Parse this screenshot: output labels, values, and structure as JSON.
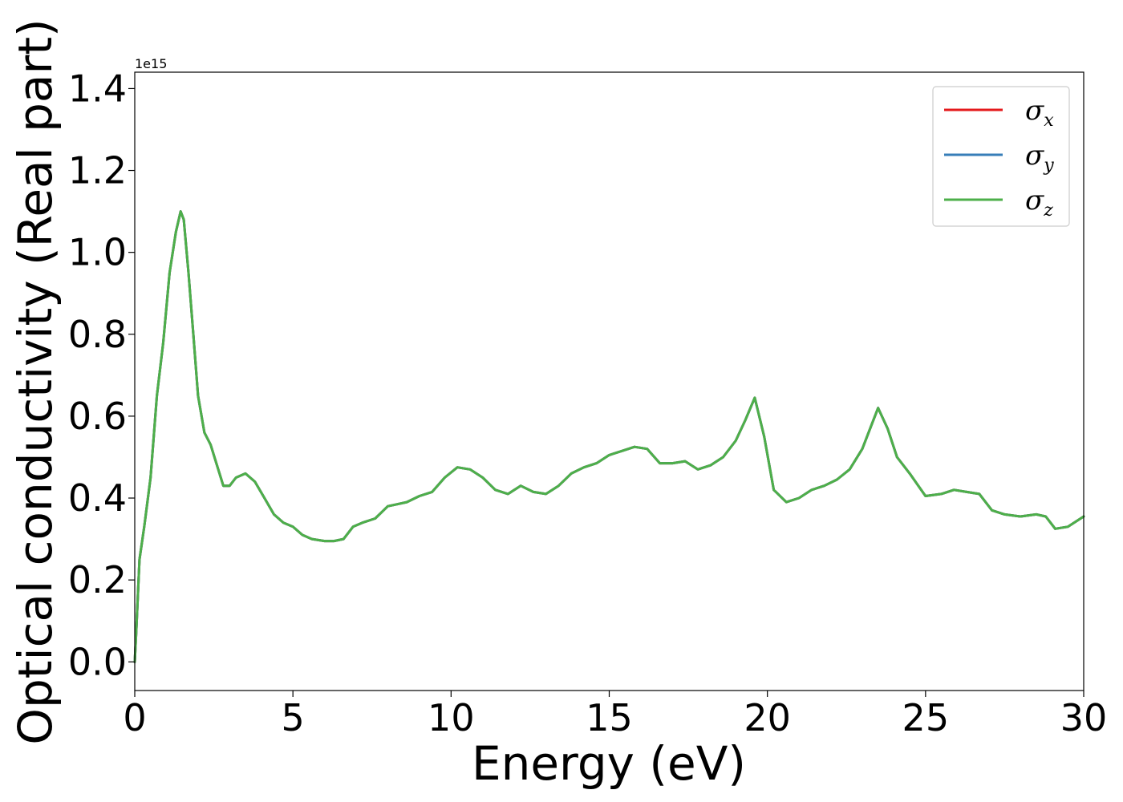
{
  "chart_data": {
    "type": "line",
    "title": "",
    "xlabel": "Energy (eV)",
    "ylabel": "Optical conductivity (Real part)",
    "y_offset_text": "1e15",
    "xlim": [
      0,
      30
    ],
    "ylim": [
      -0.07,
      1.44
    ],
    "x_ticks": [
      0,
      5,
      10,
      15,
      20,
      25,
      30
    ],
    "x_tick_labels": [
      "0",
      "5",
      "10",
      "15",
      "20",
      "25",
      "30"
    ],
    "y_ticks": [
      0.0,
      0.2,
      0.4,
      0.6,
      0.8,
      1.0,
      1.2,
      1.4
    ],
    "y_tick_labels": [
      "0.0",
      "0.2",
      "0.4",
      "0.6",
      "0.8",
      "1.0",
      "1.2",
      "1.4"
    ],
    "grid": false,
    "legend_position": "top-right",
    "series": [
      {
        "name": "σx",
        "symbol": "σ",
        "sub": "x",
        "color": "#e41a1c",
        "x": [
          0,
          0.05,
          0.15,
          0.3,
          0.5,
          0.7,
          0.9,
          1.1,
          1.3,
          1.45,
          1.55,
          1.7,
          1.85,
          2.0,
          2.2,
          2.4,
          2.6,
          2.8,
          3.0,
          3.2,
          3.5,
          3.8,
          4.1,
          4.4,
          4.7,
          5.0,
          5.3,
          5.6,
          6.0,
          6.3,
          6.6,
          6.9,
          7.2,
          7.6,
          8.0,
          8.3,
          8.6,
          9.0,
          9.4,
          9.8,
          10.2,
          10.6,
          11.0,
          11.4,
          11.8,
          12.2,
          12.6,
          13.0,
          13.4,
          13.8,
          14.2,
          14.6,
          15.0,
          15.4,
          15.8,
          16.2,
          16.6,
          17.0,
          17.4,
          17.8,
          18.2,
          18.6,
          19.0,
          19.3,
          19.6,
          19.9,
          20.2,
          20.6,
          21.0,
          21.4,
          21.8,
          22.2,
          22.6,
          23.0,
          23.3,
          23.5,
          23.8,
          24.1,
          24.5,
          25.0,
          25.5,
          25.9,
          26.3,
          26.7,
          27.1,
          27.5,
          28.0,
          28.5,
          28.8,
          29.1,
          29.5,
          30.0
        ],
        "y": [
          0.0,
          0.08,
          0.25,
          0.33,
          0.45,
          0.65,
          0.78,
          0.95,
          1.05,
          1.1,
          1.08,
          0.95,
          0.8,
          0.65,
          0.56,
          0.53,
          0.48,
          0.43,
          0.43,
          0.45,
          0.46,
          0.44,
          0.4,
          0.36,
          0.34,
          0.33,
          0.31,
          0.3,
          0.295,
          0.295,
          0.3,
          0.33,
          0.34,
          0.35,
          0.38,
          0.385,
          0.39,
          0.405,
          0.415,
          0.45,
          0.475,
          0.47,
          0.45,
          0.42,
          0.41,
          0.43,
          0.415,
          0.41,
          0.43,
          0.46,
          0.475,
          0.485,
          0.505,
          0.515,
          0.525,
          0.52,
          0.485,
          0.485,
          0.49,
          0.47,
          0.48,
          0.5,
          0.54,
          0.59,
          0.645,
          0.55,
          0.42,
          0.39,
          0.4,
          0.42,
          0.43,
          0.445,
          0.47,
          0.52,
          0.58,
          0.62,
          0.57,
          0.5,
          0.46,
          0.405,
          0.41,
          0.42,
          0.415,
          0.41,
          0.37,
          0.36,
          0.355,
          0.36,
          0.355,
          0.325,
          0.33,
          0.355
        ]
      },
      {
        "name": "σy",
        "symbol": "σ",
        "sub": "y",
        "color": "#377eb8",
        "x": [
          0,
          0.05,
          0.15,
          0.3,
          0.5,
          0.7,
          0.9,
          1.1,
          1.3,
          1.45,
          1.55,
          1.7,
          1.85,
          2.0,
          2.2,
          2.4,
          2.6,
          2.8,
          3.0,
          3.2,
          3.5,
          3.8,
          4.1,
          4.4,
          4.7,
          5.0,
          5.3,
          5.6,
          6.0,
          6.3,
          6.6,
          6.9,
          7.2,
          7.6,
          8.0,
          8.3,
          8.6,
          9.0,
          9.4,
          9.8,
          10.2,
          10.6,
          11.0,
          11.4,
          11.8,
          12.2,
          12.6,
          13.0,
          13.4,
          13.8,
          14.2,
          14.6,
          15.0,
          15.4,
          15.8,
          16.2,
          16.6,
          17.0,
          17.4,
          17.8,
          18.2,
          18.6,
          19.0,
          19.3,
          19.6,
          19.9,
          20.2,
          20.6,
          21.0,
          21.4,
          21.8,
          22.2,
          22.6,
          23.0,
          23.3,
          23.5,
          23.8,
          24.1,
          24.5,
          25.0,
          25.5,
          25.9,
          26.3,
          26.7,
          27.1,
          27.5,
          28.0,
          28.5,
          28.8,
          29.1,
          29.5,
          30.0
        ],
        "y": [
          0.0,
          0.08,
          0.25,
          0.33,
          0.45,
          0.65,
          0.78,
          0.95,
          1.05,
          1.1,
          1.08,
          0.95,
          0.8,
          0.65,
          0.56,
          0.53,
          0.48,
          0.43,
          0.43,
          0.45,
          0.46,
          0.44,
          0.4,
          0.36,
          0.34,
          0.33,
          0.31,
          0.3,
          0.295,
          0.295,
          0.3,
          0.33,
          0.34,
          0.35,
          0.38,
          0.385,
          0.39,
          0.405,
          0.415,
          0.45,
          0.475,
          0.47,
          0.45,
          0.42,
          0.41,
          0.43,
          0.415,
          0.41,
          0.43,
          0.46,
          0.475,
          0.485,
          0.505,
          0.515,
          0.525,
          0.52,
          0.485,
          0.485,
          0.49,
          0.47,
          0.48,
          0.5,
          0.54,
          0.59,
          0.645,
          0.55,
          0.42,
          0.39,
          0.4,
          0.42,
          0.43,
          0.445,
          0.47,
          0.52,
          0.58,
          0.62,
          0.57,
          0.5,
          0.46,
          0.405,
          0.41,
          0.42,
          0.415,
          0.41,
          0.37,
          0.36,
          0.355,
          0.36,
          0.355,
          0.325,
          0.33,
          0.355
        ]
      },
      {
        "name": "σz",
        "symbol": "σ",
        "sub": "z",
        "color": "#4daf4a",
        "x": [
          0,
          0.05,
          0.15,
          0.3,
          0.5,
          0.7,
          0.9,
          1.1,
          1.3,
          1.45,
          1.55,
          1.7,
          1.85,
          2.0,
          2.2,
          2.4,
          2.6,
          2.8,
          3.0,
          3.2,
          3.5,
          3.8,
          4.1,
          4.4,
          4.7,
          5.0,
          5.3,
          5.6,
          6.0,
          6.3,
          6.6,
          6.9,
          7.2,
          7.6,
          8.0,
          8.3,
          8.6,
          9.0,
          9.4,
          9.8,
          10.2,
          10.6,
          11.0,
          11.4,
          11.8,
          12.2,
          12.6,
          13.0,
          13.4,
          13.8,
          14.2,
          14.6,
          15.0,
          15.4,
          15.8,
          16.2,
          16.6,
          17.0,
          17.4,
          17.8,
          18.2,
          18.6,
          19.0,
          19.3,
          19.6,
          19.9,
          20.2,
          20.6,
          21.0,
          21.4,
          21.8,
          22.2,
          22.6,
          23.0,
          23.3,
          23.5,
          23.8,
          24.1,
          24.5,
          25.0,
          25.5,
          25.9,
          26.3,
          26.7,
          27.1,
          27.5,
          28.0,
          28.5,
          28.8,
          29.1,
          29.5,
          30.0
        ],
        "y": [
          0.0,
          0.08,
          0.25,
          0.33,
          0.45,
          0.65,
          0.78,
          0.95,
          1.05,
          1.1,
          1.08,
          0.95,
          0.8,
          0.65,
          0.56,
          0.53,
          0.48,
          0.43,
          0.43,
          0.45,
          0.46,
          0.44,
          0.4,
          0.36,
          0.34,
          0.33,
          0.31,
          0.3,
          0.295,
          0.295,
          0.3,
          0.33,
          0.34,
          0.35,
          0.38,
          0.385,
          0.39,
          0.405,
          0.415,
          0.45,
          0.475,
          0.47,
          0.45,
          0.42,
          0.41,
          0.43,
          0.415,
          0.41,
          0.43,
          0.46,
          0.475,
          0.485,
          0.505,
          0.515,
          0.525,
          0.52,
          0.485,
          0.485,
          0.49,
          0.47,
          0.48,
          0.5,
          0.54,
          0.59,
          0.645,
          0.55,
          0.42,
          0.39,
          0.4,
          0.42,
          0.43,
          0.445,
          0.47,
          0.52,
          0.58,
          0.62,
          0.57,
          0.5,
          0.46,
          0.405,
          0.41,
          0.42,
          0.415,
          0.41,
          0.37,
          0.36,
          0.355,
          0.36,
          0.355,
          0.325,
          0.33,
          0.355
        ]
      }
    ]
  }
}
